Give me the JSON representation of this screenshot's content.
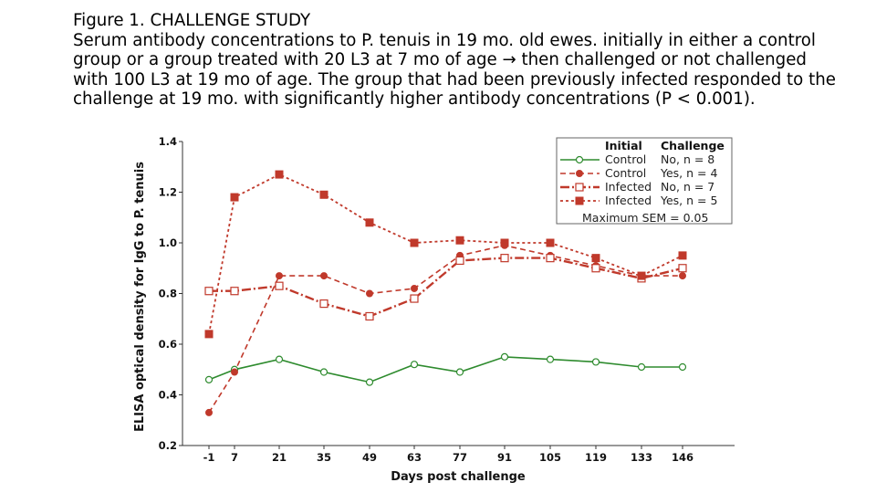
{
  "caption": {
    "line1": "Figure 1. CHALLENGE STUDY",
    "line2": "Serum antibody concentrations to P. tenuis in 19 mo. old ewes. initially in either a control",
    "line3": "group or a group treated with 20 L3 at 7 mo of age → then challenged or not challenged",
    "line4": "with 100 L3 at 19 mo of age. The group that had been previously infected responded to the",
    "line5": "challenge at 19 mo. with  significantly higher antibody concentrations (P < 0.001)."
  },
  "chart_data": {
    "type": "line",
    "xlabel": "Days post challenge",
    "ylabel": "ELISA optical density for IgG to P. tenuis",
    "categories": [
      "-1",
      "7",
      "21",
      "35",
      "49",
      "63",
      "77",
      "91",
      "105",
      "119",
      "133",
      "146"
    ],
    "ylim": [
      0.2,
      1.4
    ],
    "yticks": [
      "0.2",
      "0.4",
      "0.6",
      "0.8",
      "1.0",
      "1.2",
      "1.4"
    ],
    "grid": false,
    "legend_position": "top-right",
    "legend": {
      "header_initial": "Initial",
      "header_challenge": "Challenge",
      "note": "Maximum SEM = 0.05"
    },
    "series": [
      {
        "name": "Control",
        "challenge": "No, n = 8",
        "color": "#2e8b2e",
        "marker": "open-circle",
        "dash": "solid",
        "values": [
          0.46,
          0.5,
          0.54,
          0.49,
          0.45,
          0.52,
          0.49,
          0.55,
          0.54,
          0.53,
          0.51,
          0.51
        ]
      },
      {
        "name": "Control",
        "challenge": "Yes, n = 4",
        "color": "#c0392b",
        "marker": "filled-circle",
        "dash": "dash",
        "values": [
          0.33,
          0.49,
          0.87,
          0.87,
          0.8,
          0.82,
          0.95,
          0.99,
          0.95,
          0.91,
          0.87,
          0.87
        ]
      },
      {
        "name": "Infected",
        "challenge": "No, n = 7",
        "color": "#c0392b",
        "marker": "open-square",
        "dash": "dashdot",
        "values": [
          0.81,
          0.81,
          0.83,
          0.76,
          0.71,
          0.78,
          0.93,
          0.94,
          0.94,
          0.9,
          0.86,
          0.9
        ]
      },
      {
        "name": "Infected",
        "challenge": "Yes, n = 5",
        "color": "#c0392b",
        "marker": "filled-square",
        "dash": "dot",
        "values": [
          0.64,
          1.18,
          1.27,
          1.19,
          1.08,
          1.0,
          1.01,
          1.0,
          1.0,
          0.94,
          0.87,
          0.95
        ]
      }
    ]
  }
}
